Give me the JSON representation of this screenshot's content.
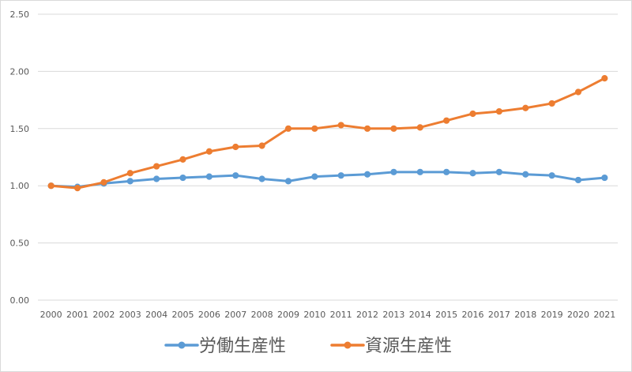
{
  "chart_data": {
    "type": "line",
    "title": "",
    "xlabel": "",
    "ylabel": "",
    "x": [
      "2000",
      "2001",
      "2002",
      "2003",
      "2004",
      "2005",
      "2006",
      "2007",
      "2008",
      "2009",
      "2010",
      "2011",
      "2012",
      "2013",
      "2014",
      "2015",
      "2016",
      "2017",
      "2018",
      "2019",
      "2020",
      "2021"
    ],
    "ylim": [
      0,
      2.5
    ],
    "yticks": [
      "0.00",
      "0.50",
      "1.00",
      "1.50",
      "2.00",
      "2.50"
    ],
    "grid": true,
    "legend_position": "bottom",
    "series": [
      {
        "name": "労働生産性",
        "color": "#5b9bd5",
        "values": [
          1.0,
          0.99,
          1.02,
          1.04,
          1.06,
          1.07,
          1.08,
          1.09,
          1.06,
          1.04,
          1.08,
          1.09,
          1.1,
          1.12,
          1.12,
          1.12,
          1.11,
          1.12,
          1.1,
          1.09,
          1.05,
          1.07
        ]
      },
      {
        "name": "資源生産性",
        "color": "#ed7d31",
        "values": [
          1.0,
          0.98,
          1.03,
          1.11,
          1.17,
          1.23,
          1.3,
          1.34,
          1.35,
          1.5,
          1.5,
          1.53,
          1.5,
          1.5,
          1.51,
          1.57,
          1.63,
          1.65,
          1.68,
          1.72,
          1.82,
          1.94
        ]
      }
    ]
  }
}
